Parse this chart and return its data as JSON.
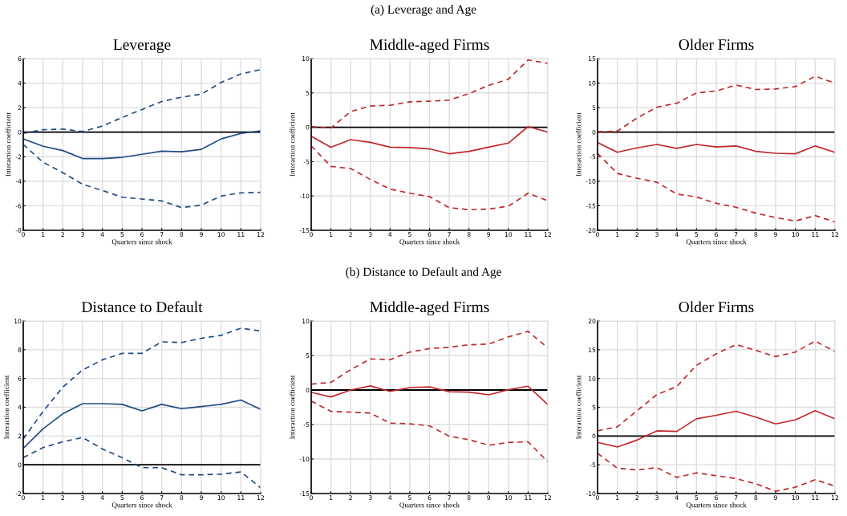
{
  "chart_data": [
    {
      "type": "line",
      "title": "Leverage",
      "xlabel": "Quarters since shock",
      "ylabel": "Interaction coefficient",
      "annotations": [
        "(a) Leverage and Age"
      ],
      "x": [
        0,
        1,
        2,
        3,
        4,
        5,
        6,
        7,
        8,
        9,
        10,
        11,
        12
      ],
      "xlim": [
        0,
        12
      ],
      "xticks": [
        0,
        1,
        2,
        3,
        4,
        5,
        6,
        7,
        8,
        9,
        10,
        11,
        12
      ],
      "ylim": [
        -8,
        6
      ],
      "yticks": [
        -8,
        -6,
        -4,
        -2,
        0,
        2,
        4,
        6
      ],
      "grid": true,
      "ref_lines": [
        {
          "axis": "y",
          "value": 0,
          "color": "#000000"
        }
      ],
      "series": [
        {
          "color": "#1f4b87",
          "line_style": "dashed",
          "values": [
            -0.1,
            0.2,
            0.25,
            0.05,
            0.5,
            1.2,
            1.85,
            2.5,
            2.85,
            3.1,
            4.05,
            4.75,
            5.1
          ]
        },
        {
          "color": "#1f4b87",
          "line_style": "solid",
          "values": [
            -0.55,
            -1.15,
            -1.5,
            -2.15,
            -2.15,
            -2.05,
            -1.8,
            -1.55,
            -1.6,
            -1.4,
            -0.55,
            -0.1,
            0.1
          ]
        },
        {
          "color": "#1f4b87",
          "line_style": "dashed",
          "values": [
            -1.0,
            -2.45,
            -3.3,
            -4.25,
            -4.75,
            -5.3,
            -5.45,
            -5.6,
            -6.15,
            -5.95,
            -5.2,
            -4.95,
            -4.9
          ]
        }
      ]
    },
    {
      "type": "line",
      "title": "Middle-aged Firms",
      "xlabel": "Quarters since shock",
      "ylabel": "Interaction coefficient",
      "x": [
        0,
        1,
        2,
        3,
        4,
        5,
        6,
        7,
        8,
        9,
        10,
        11,
        12
      ],
      "xlim": [
        0,
        12
      ],
      "xticks": [
        0,
        1,
        2,
        3,
        4,
        5,
        6,
        7,
        8,
        9,
        10,
        11,
        12
      ],
      "ylim": [
        -15,
        10
      ],
      "yticks": [
        -15,
        -10,
        -5,
        0,
        5,
        10
      ],
      "grid": true,
      "ref_lines": [
        {
          "axis": "y",
          "value": 0,
          "color": "#000000"
        }
      ],
      "series": [
        {
          "color": "#c0282d",
          "line_style": "dashed",
          "values": [
            0.1,
            -0.1,
            2.3,
            3.1,
            3.2,
            3.7,
            3.8,
            3.95,
            4.9,
            6.1,
            7.0,
            9.8,
            9.3
          ]
        },
        {
          "color": "#c0282d",
          "line_style": "solid",
          "values": [
            -1.3,
            -2.9,
            -1.8,
            -2.2,
            -2.9,
            -2.95,
            -3.15,
            -3.85,
            -3.5,
            -2.9,
            -2.3,
            0.1,
            -0.7
          ]
        },
        {
          "color": "#c0282d",
          "line_style": "dashed",
          "values": [
            -2.7,
            -5.7,
            -6.0,
            -7.6,
            -9.0,
            -9.6,
            -10.1,
            -11.7,
            -12.0,
            -11.9,
            -11.5,
            -9.6,
            -10.7
          ]
        }
      ]
    },
    {
      "type": "line",
      "title": "Older Firms",
      "xlabel": "Quarters since shock",
      "ylabel": "Interaction coefficient",
      "x": [
        0,
        1,
        2,
        3,
        4,
        5,
        6,
        7,
        8,
        9,
        10,
        11,
        12
      ],
      "xlim": [
        0,
        12
      ],
      "xticks": [
        0,
        1,
        2,
        3,
        4,
        5,
        6,
        7,
        8,
        9,
        10,
        11,
        12
      ],
      "ylim": [
        -20,
        15
      ],
      "yticks": [
        -20,
        -15,
        -10,
        -5,
        0,
        5,
        10,
        15
      ],
      "grid": true,
      "ref_lines": [
        {
          "axis": "y",
          "value": 0,
          "color": "#000000"
        }
      ],
      "series": [
        {
          "color": "#c0282d",
          "line_style": "dashed",
          "values": [
            0.1,
            0.2,
            2.9,
            5.1,
            5.9,
            8.0,
            8.4,
            9.6,
            8.7,
            8.8,
            9.3,
            11.4,
            10.0
          ]
        },
        {
          "color": "#c0282d",
          "line_style": "solid",
          "values": [
            -2.1,
            -4.1,
            -3.2,
            -2.5,
            -3.3,
            -2.5,
            -3.0,
            -2.8,
            -3.9,
            -4.3,
            -4.4,
            -2.8,
            -4.1
          ]
        },
        {
          "color": "#c0282d",
          "line_style": "dashed",
          "values": [
            -4.3,
            -8.4,
            -9.4,
            -10.2,
            -12.6,
            -13.2,
            -14.5,
            -15.3,
            -16.5,
            -17.4,
            -18.1,
            -17.0,
            -18.3
          ]
        }
      ]
    },
    {
      "type": "line",
      "title": "Distance to Default",
      "xlabel": "Quarters since shock",
      "ylabel": "Interaction coefficient",
      "annotations": [
        "(b) Distance to Default and Age"
      ],
      "x": [
        0,
        1,
        2,
        3,
        4,
        5,
        6,
        7,
        8,
        9,
        10,
        11,
        12
      ],
      "xlim": [
        0,
        12
      ],
      "xticks": [
        0,
        1,
        2,
        3,
        4,
        5,
        6,
        7,
        8,
        9,
        10,
        11,
        12
      ],
      "ylim": [
        -2,
        10
      ],
      "yticks": [
        -2,
        0,
        2,
        4,
        6,
        8,
        10
      ],
      "grid": true,
      "ref_lines": [
        {
          "axis": "y",
          "value": 0,
          "color": "#000000"
        }
      ],
      "series": [
        {
          "color": "#1f4b87",
          "line_style": "dashed",
          "values": [
            1.8,
            3.7,
            5.4,
            6.6,
            7.3,
            7.75,
            7.75,
            8.55,
            8.5,
            8.8,
            9.0,
            9.5,
            9.3
          ]
        },
        {
          "color": "#1f4b87",
          "line_style": "solid",
          "values": [
            1.15,
            2.5,
            3.55,
            4.25,
            4.25,
            4.2,
            3.75,
            4.2,
            3.9,
            4.05,
            4.2,
            4.5,
            3.85
          ]
        },
        {
          "color": "#1f4b87",
          "line_style": "dashed",
          "values": [
            0.5,
            1.2,
            1.6,
            1.9,
            1.1,
            0.5,
            -0.2,
            -0.2,
            -0.7,
            -0.7,
            -0.65,
            -0.5,
            -1.6
          ]
        }
      ]
    },
    {
      "type": "line",
      "title": "Middle-aged Firms",
      "xlabel": "Quarters since shock",
      "ylabel": "Interaction coefficient",
      "x": [
        0,
        1,
        2,
        3,
        4,
        5,
        6,
        7,
        8,
        9,
        10,
        11,
        12
      ],
      "xlim": [
        0,
        12
      ],
      "xticks": [
        0,
        1,
        2,
        3,
        4,
        5,
        6,
        7,
        8,
        9,
        10,
        11,
        12
      ],
      "ylim": [
        -15,
        10
      ],
      "yticks": [
        -15,
        -10,
        -5,
        0,
        5,
        10
      ],
      "grid": true,
      "ref_lines": [
        {
          "axis": "y",
          "value": 0,
          "color": "#000000"
        }
      ],
      "series": [
        {
          "color": "#c0282d",
          "line_style": "dashed",
          "values": [
            0.85,
            1.1,
            2.95,
            4.5,
            4.4,
            5.5,
            6.0,
            6.2,
            6.55,
            6.65,
            7.7,
            8.5,
            6.1
          ]
        },
        {
          "color": "#c0282d",
          "line_style": "solid",
          "values": [
            -0.35,
            -1.0,
            0.0,
            0.6,
            -0.2,
            0.35,
            0.45,
            -0.25,
            -0.3,
            -0.7,
            0.05,
            0.55,
            -2.1
          ]
        },
        {
          "color": "#c0282d",
          "line_style": "dashed",
          "values": [
            -1.6,
            -3.1,
            -3.2,
            -3.35,
            -4.8,
            -4.9,
            -5.2,
            -6.7,
            -7.2,
            -8.0,
            -7.6,
            -7.5,
            -10.4
          ]
        }
      ]
    },
    {
      "type": "line",
      "title": "Older Firms",
      "xlabel": "Quarters since shock",
      "ylabel": "Interaction coefficient",
      "x": [
        0,
        1,
        2,
        3,
        4,
        5,
        6,
        7,
        8,
        9,
        10,
        11,
        12
      ],
      "xlim": [
        0,
        12
      ],
      "xticks": [
        0,
        1,
        2,
        3,
        4,
        5,
        6,
        7,
        8,
        9,
        10,
        11,
        12
      ],
      "ylim": [
        -10,
        20
      ],
      "yticks": [
        -10,
        -5,
        0,
        5,
        10,
        15,
        20
      ],
      "grid": true,
      "ref_lines": [
        {
          "axis": "y",
          "value": 0,
          "color": "#000000"
        }
      ],
      "series": [
        {
          "color": "#c0282d",
          "line_style": "dashed",
          "values": [
            0.9,
            1.6,
            4.4,
            7.2,
            8.6,
            12.3,
            14.3,
            15.9,
            14.9,
            13.8,
            14.6,
            16.5,
            14.7
          ]
        },
        {
          "color": "#c0282d",
          "line_style": "solid",
          "values": [
            -1.1,
            -1.9,
            -0.7,
            0.9,
            0.8,
            3.0,
            3.6,
            4.3,
            3.3,
            2.1,
            2.8,
            4.4,
            3.0
          ]
        },
        {
          "color": "#c0282d",
          "line_style": "dashed",
          "values": [
            -3.0,
            -5.6,
            -5.9,
            -5.5,
            -7.2,
            -6.4,
            -6.9,
            -7.4,
            -8.3,
            -9.6,
            -8.9,
            -7.6,
            -8.7
          ]
        }
      ]
    }
  ]
}
